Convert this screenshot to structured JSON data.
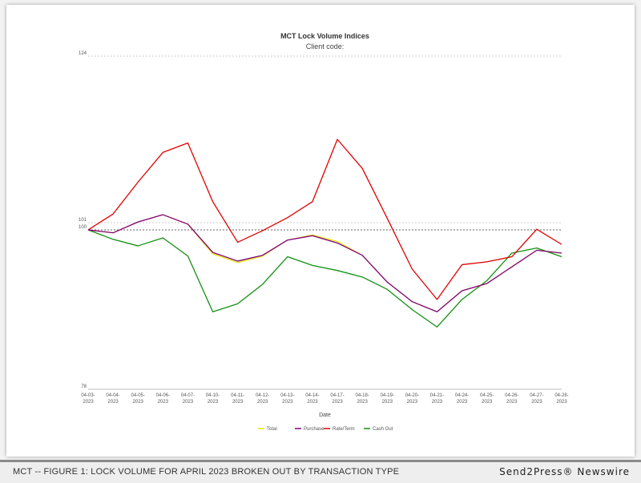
{
  "chart_data": {
    "type": "line",
    "title": "MCT Lock Volume Indices",
    "subtitle": "Client code:",
    "xlabel": "Date",
    "ylabel": "",
    "ylim": [
      78,
      124
    ],
    "yticks": [
      78,
      100,
      101,
      124
    ],
    "categories": [
      "04-03-2023",
      "04-04-2023",
      "04-05-2023",
      "04-06-2023",
      "04-07-2023",
      "04-10-2023",
      "04-11-2023",
      "04-12-2023",
      "04-13-2023",
      "04-14-2023",
      "04-17-2023",
      "04-18-2023",
      "04-19-2023",
      "04-20-2023",
      "04-21-2023",
      "04-24-2023",
      "04-25-2023",
      "04-26-2023",
      "04-27-2023",
      "04-28-2023"
    ],
    "legend_position": "bottom",
    "series": [
      {
        "name": "Total",
        "color": "#e6e600",
        "values": [
          100,
          99.6,
          101.1,
          102.1,
          100.8,
          96.7,
          95.5,
          96.4,
          98.6,
          99.3,
          98.4,
          96.5,
          92.8,
          90.1,
          88.7,
          91.6,
          92.6,
          94.9,
          97.2,
          96.8
        ]
      },
      {
        "name": "Purchase",
        "color": "#800080",
        "values": [
          100,
          99.6,
          101.1,
          102.1,
          100.8,
          96.9,
          95.7,
          96.5,
          98.6,
          99.2,
          98.2,
          96.5,
          92.8,
          90.1,
          88.7,
          91.6,
          92.6,
          94.9,
          97.2,
          96.8
        ]
      },
      {
        "name": "Rate/Term",
        "color": "#e00000",
        "values": [
          100,
          102.2,
          106.6,
          110.7,
          112.0,
          103.9,
          98.3,
          99.9,
          101.7,
          103.9,
          112.5,
          108.5,
          101.6,
          94.6,
          90.4,
          95.2,
          95.6,
          96.3,
          100.1,
          98.0
        ]
      },
      {
        "name": "Cash Out",
        "color": "#109010",
        "values": [
          100,
          98.7,
          97.8,
          98.9,
          96.4,
          88.7,
          89.8,
          92.5,
          96.3,
          95.1,
          94.4,
          93.5,
          91.8,
          89.0,
          86.6,
          90.4,
          93.0,
          96.8,
          97.5,
          96.3
        ]
      }
    ]
  },
  "footer": {
    "caption": "MCT --  FIGURE 1: LOCK VOLUME FOR APRIL 2023 BROKEN OUT BY TRANSACTION TYPE",
    "brand": "Send2Press® Newswire"
  }
}
